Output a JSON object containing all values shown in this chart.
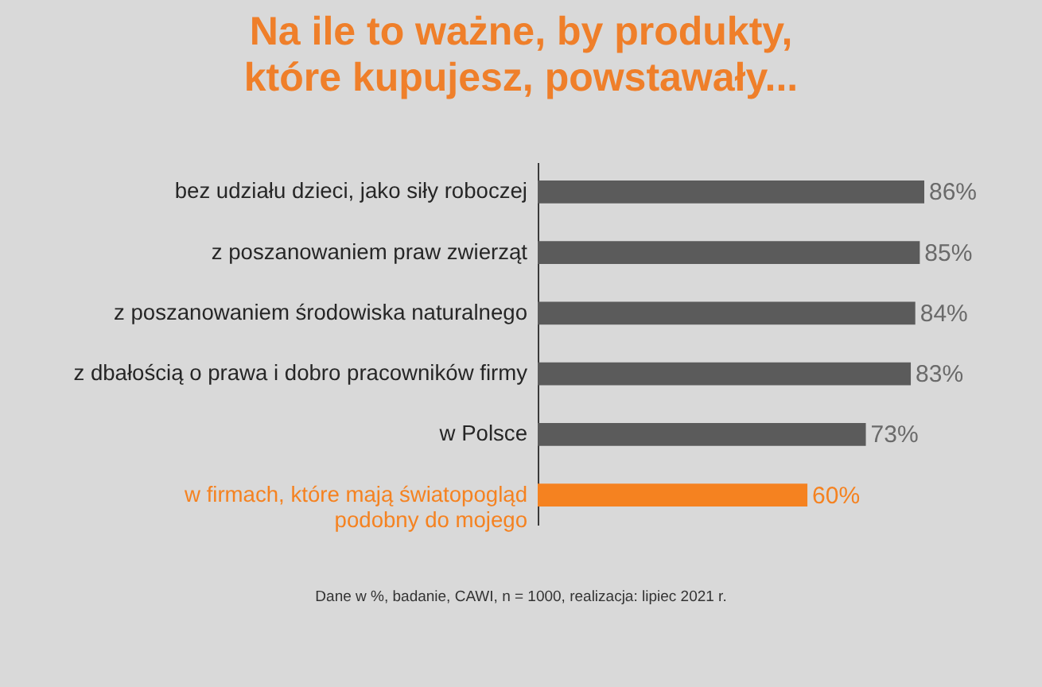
{
  "chart_data": {
    "type": "bar",
    "orientation": "horizontal",
    "title": "Na ile to ważne, by produkty, które kupujesz, powstawały...",
    "categories": [
      "bez udziału dzieci, jako siły roboczej",
      "z poszanowaniem praw zwierząt",
      "z poszanowaniem środowiska naturalnego",
      "z dbałością o prawa i dobro pracowników firmy",
      "w Polsce",
      "w firmach, które mają światopogląd podobny do mojego"
    ],
    "values": [
      86,
      85,
      84,
      83,
      73,
      60
    ],
    "colors": [
      "#5b5b5b",
      "#5b5b5b",
      "#5b5b5b",
      "#5b5b5b",
      "#5b5b5b",
      "#f58220"
    ],
    "value_labels": [
      "86%",
      "85%",
      "84%",
      "83%",
      "73%",
      "60%"
    ],
    "tick_labels": "y",
    "annotations": [
      "Dane w %, badanie, CAWI, n = 1000, realizacja: lipiec 2021 r."
    ]
  }
}
